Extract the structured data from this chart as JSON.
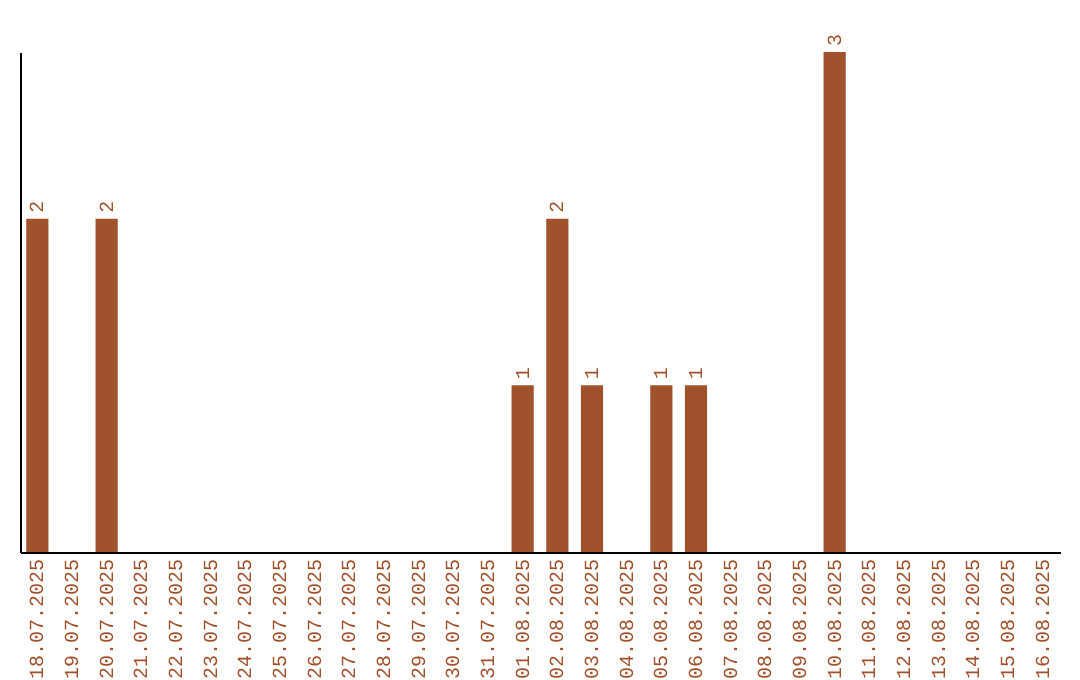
{
  "chart_data": {
    "type": "bar",
    "categories": [
      "18.07.2025",
      "19.07.2025",
      "20.07.2025",
      "21.07.2025",
      "22.07.2025",
      "23.07.2025",
      "24.07.2025",
      "25.07.2025",
      "26.07.2025",
      "27.07.2025",
      "28.07.2025",
      "29.07.2025",
      "30.07.2025",
      "31.07.2025",
      "01.08.2025",
      "02.08.2025",
      "03.08.2025",
      "04.08.2025",
      "05.08.2025",
      "06.08.2025",
      "07.08.2025",
      "08.08.2025",
      "09.08.2025",
      "10.08.2025",
      "11.08.2025",
      "12.08.2025",
      "13.08.2025",
      "14.08.2025",
      "15.08.2025",
      "16.08.2025"
    ],
    "values": [
      2,
      0,
      2,
      0,
      0,
      0,
      0,
      0,
      0,
      0,
      0,
      0,
      0,
      0,
      1,
      2,
      1,
      0,
      1,
      1,
      0,
      0,
      0,
      3,
      0,
      0,
      0,
      0,
      0,
      0
    ],
    "value_labels": [
      "2",
      null,
      "2",
      null,
      null,
      null,
      null,
      null,
      null,
      null,
      null,
      null,
      null,
      null,
      "1",
      "2",
      "1",
      null,
      "1",
      "1",
      null,
      null,
      null,
      "3",
      null,
      null,
      null,
      null,
      null,
      null
    ],
    "color": "#a0522d",
    "tick_labels": "x"
  }
}
